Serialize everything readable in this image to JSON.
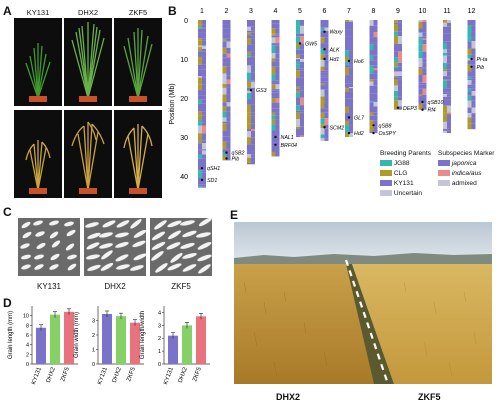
{
  "panels": {
    "a": "A",
    "b": "B",
    "c": "C",
    "d": "D",
    "e": "E"
  },
  "varieties": [
    "KY131",
    "DHX2",
    "ZKF5"
  ],
  "chromosomes": [
    "1",
    "2",
    "3",
    "4",
    "5",
    "6",
    "7",
    "8",
    "9",
    "10",
    "11",
    "12"
  ],
  "position_axis": {
    "label": "Position (Mb)",
    "ticks": [
      "0",
      "10",
      "20",
      "30",
      "40"
    ]
  },
  "gene_labels": [
    "qSH1",
    "SD1",
    "qSB2",
    "Pib",
    "GS3",
    "NAL1",
    "BRF04",
    "GW5",
    "Waxy",
    "ALK",
    "Hd1",
    "Ho6",
    "GL7",
    "SCM2",
    "Hd2",
    "qSB8",
    "OsSPY",
    "DEP3",
    "qSB10",
    "Rf4",
    "Pi-ta",
    "Pib"
  ],
  "legend": {
    "breeding_title": "Breeding Parents",
    "breeding_items": [
      {
        "label": "JG88",
        "color": "#33b7b0"
      },
      {
        "label": "CLG",
        "color": "#b09a2a"
      },
      {
        "label": "KY131",
        "color": "#7b72c9"
      },
      {
        "label": "Uncertain",
        "color": "#c4c6d6"
      }
    ],
    "subspecies_title": "Subspecies Marker",
    "subspecies_items": [
      {
        "label": "japonica",
        "color": "#7b72c9"
      },
      {
        "label": "indica/aus",
        "color": "#e98b8b"
      },
      {
        "label": "admixed",
        "color": "#c4c6d6"
      }
    ]
  },
  "grain_charts": [
    {
      "ylabel": "Grain length (mm)",
      "ticks": [
        "0",
        "2",
        "4",
        "6",
        "8",
        "10"
      ],
      "values": [
        7.5,
        10.2,
        10.8
      ],
      "ylim": [
        0,
        12
      ]
    },
    {
      "ylabel": "Grain width (mm)",
      "ticks": [
        "0",
        "1",
        "2",
        "3"
      ],
      "values": [
        3.45,
        3.3,
        2.85
      ],
      "ylim": [
        0,
        4
      ]
    },
    {
      "ylabel": "Grain length/width",
      "ticks": [
        "0",
        "1",
        "2",
        "3",
        "4"
      ],
      "values": [
        2.2,
        3.0,
        3.7
      ],
      "ylim": [
        0,
        4.5
      ]
    }
  ],
  "bar_colors": [
    "#7b72c9",
    "#86d166",
    "#e8737e"
  ],
  "field_labels": [
    "DHX2",
    "ZKF5"
  ]
}
